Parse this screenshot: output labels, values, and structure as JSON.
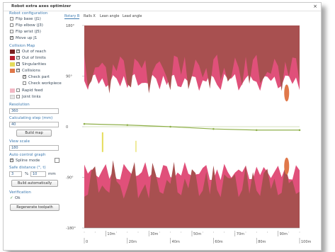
{
  "window": {
    "title": "Robot extra axes optimizer",
    "close_icon": "close-icon"
  },
  "panel": {
    "robot_config_header": "Robot configuration",
    "robot_config": [
      {
        "label": "Flip base (J1)",
        "checked": false
      },
      {
        "label": "Flip elbow (J3)",
        "checked": false
      },
      {
        "label": "Flip wrist (J5)",
        "checked": false
      },
      {
        "label": "Move up J1",
        "checked": true
      }
    ],
    "collision_map_header": "Collision Map",
    "collision_map": [
      {
        "label": "Out of reach",
        "checked": true,
        "color": "#7a2020"
      },
      {
        "label": "Out of limits",
        "checked": true,
        "color": "#b81e2e"
      },
      {
        "label": "Singularities",
        "checked": true,
        "color": "#e5dc5a"
      },
      {
        "label": "Collisions",
        "checked": true,
        "color": "#e0784a"
      }
    ],
    "check_part_label": "Check part",
    "check_part_checked": true,
    "check_workpiece_label": "Check workpiece",
    "check_workpiece_checked": false,
    "rapid_feed_label": "Rapid feed",
    "rapid_feed_color": "#f2b8c4",
    "joint_links_label": "Joint links",
    "joint_links_color": "#e6e6e6",
    "resolution_label": "Resolution",
    "resolution_value": "360",
    "step_label": "Calculating step (mm)",
    "step_value": "40",
    "build_map_label": "Build map",
    "view_scale_label": "View scale",
    "view_scale_value": "180",
    "auto_graph_label": "Auto control graph",
    "spline_mode_label": "Spline mode",
    "spline_mode_checked": true,
    "safe_distance_label": "Safe distance (°, t)",
    "safe_deg": "3",
    "safe_pct_label": "%",
    "safe_val": "10",
    "safe_unit": "mm",
    "build_auto_label": "Build automatically",
    "verification_label": "Verification",
    "ok_label": "Ok",
    "regenerate_label": "Regenerate toolpath"
  },
  "tabs": [
    {
      "label": "Rotary B",
      "active": true
    },
    {
      "label": "Rails X",
      "active": false
    },
    {
      "label": "Lean angle",
      "active": false
    },
    {
      "label": "Lead angle",
      "active": false
    }
  ],
  "chart_data": {
    "type": "area",
    "y_ticks": [
      "180°",
      "90°",
      "0",
      "-90°",
      "-180°"
    ],
    "ylim": [
      -180,
      180
    ],
    "x_ticks": [
      "0",
      "20m",
      "40m",
      "60m",
      "80m",
      "100m"
    ],
    "x_ticks_upper": [
      "10m",
      "30m",
      "50m",
      "70m",
      "90m"
    ],
    "xlim": [
      0,
      100
    ],
    "colors": {
      "out_of_reach": "#a85050",
      "out_of_limits": "#e0507a",
      "singularity": "#e5dc5a",
      "collision": "#e0784a",
      "path": "#8fb04a"
    },
    "path": {
      "x": [
        0,
        20,
        40,
        60,
        80,
        100
      ],
      "y": [
        5,
        3,
        0,
        -4,
        -6,
        -6
      ]
    }
  }
}
